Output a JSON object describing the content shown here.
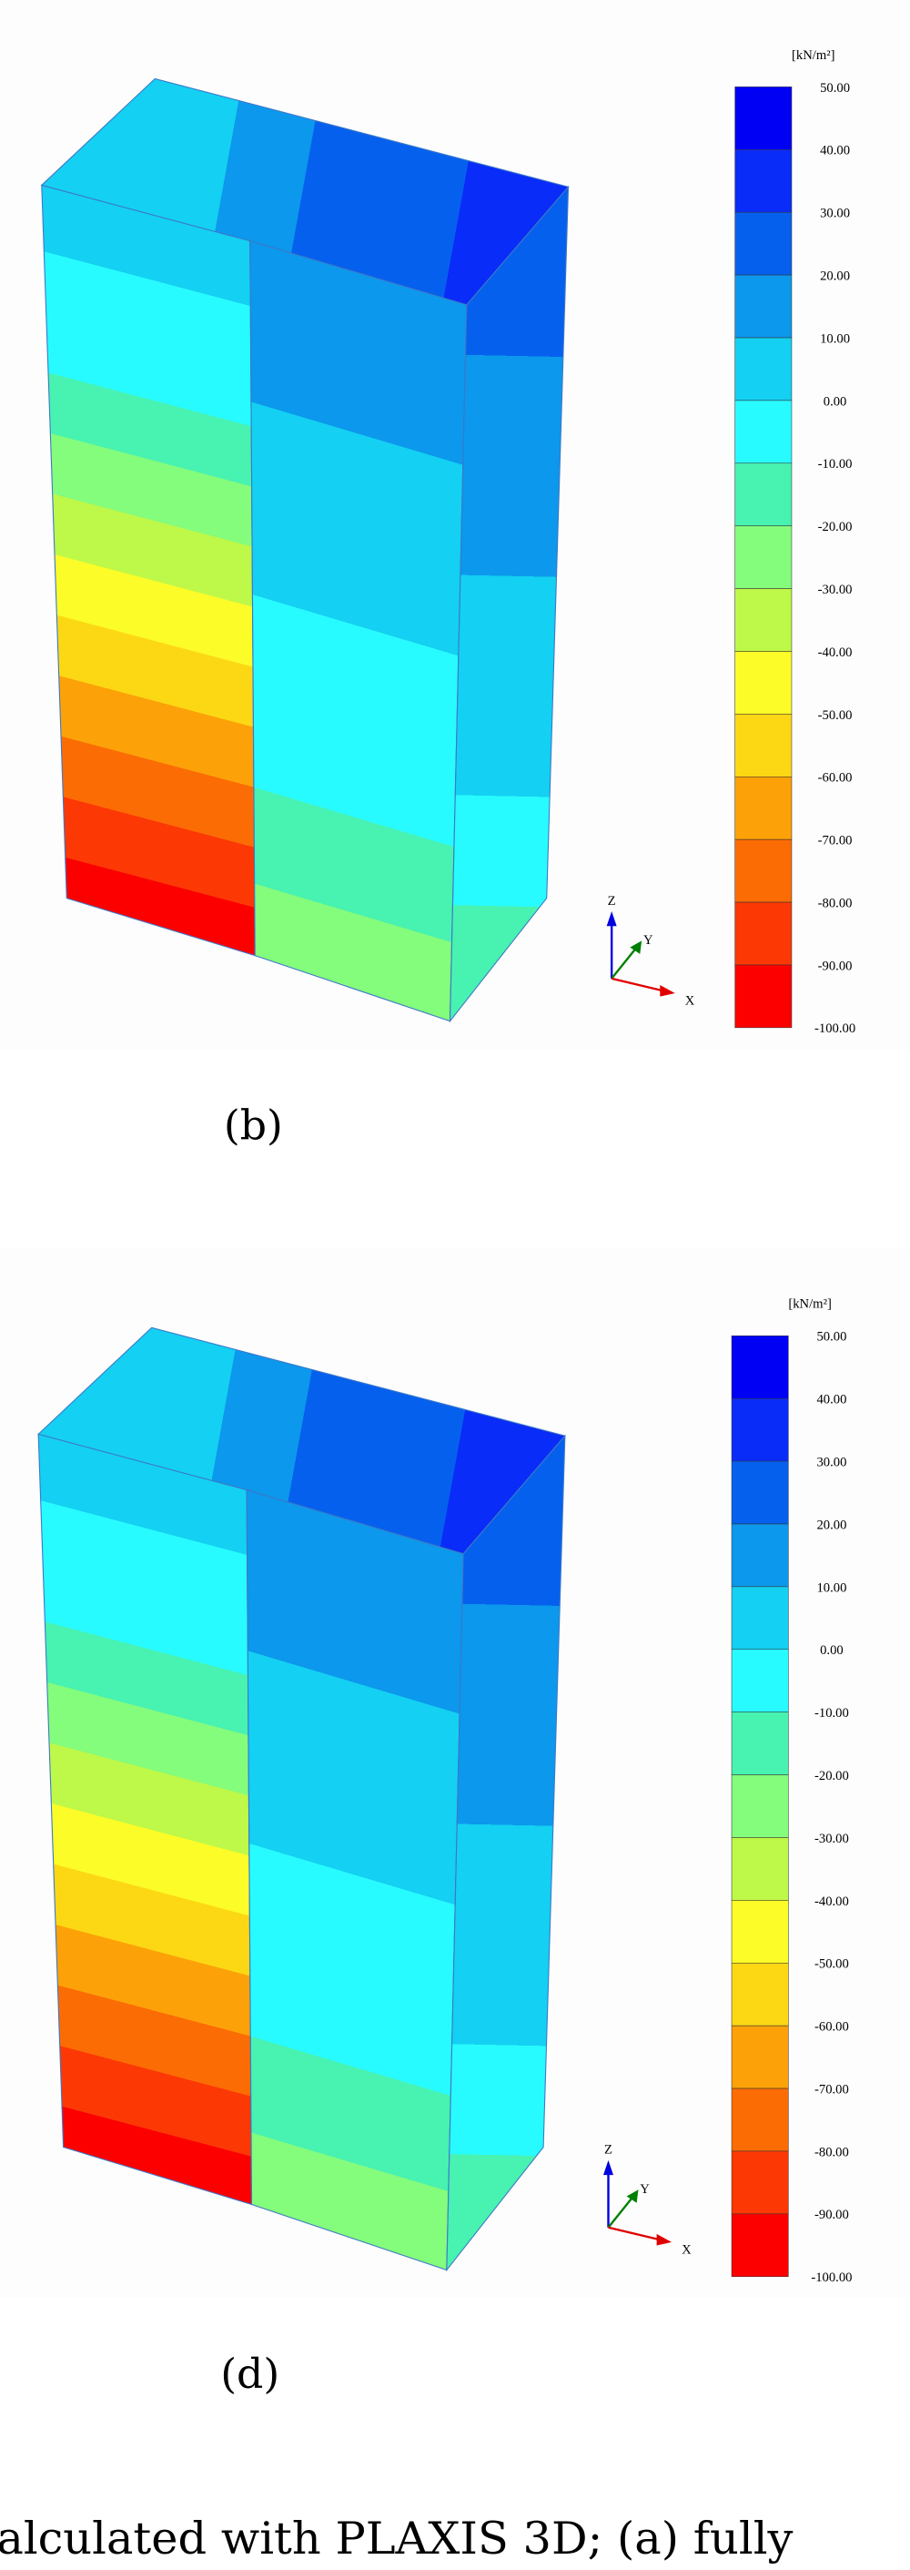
{
  "panels": [
    {
      "unit": "[kN/m²]",
      "labels": [
        "50.00",
        "40.00",
        "30.00",
        "20.00",
        "10.00",
        "0.00",
        "-10.00",
        "-20.00",
        "-30.00",
        "-40.00",
        "-50.00",
        "-60.00",
        "-70.00",
        "-80.00",
        "-90.00",
        "-100.00"
      ],
      "axes": {
        "z": "Z",
        "y": "Y",
        "x": "X"
      },
      "caption": "(b)"
    },
    {
      "unit": "[kN/m²]",
      "labels": [
        "50.00",
        "40.00",
        "30.00",
        "20.00",
        "10.00",
        "0.00",
        "-10.00",
        "-20.00",
        "-30.00",
        "-40.00",
        "-50.00",
        "-60.00",
        "-70.00",
        "-80.00",
        "-90.00",
        "-100.00"
      ],
      "axes": {
        "z": "Z",
        "y": "Y",
        "x": "X"
      },
      "caption": "(d)"
    }
  ],
  "footer": "alculated with PLAXIS 3D; (a) fully"
}
